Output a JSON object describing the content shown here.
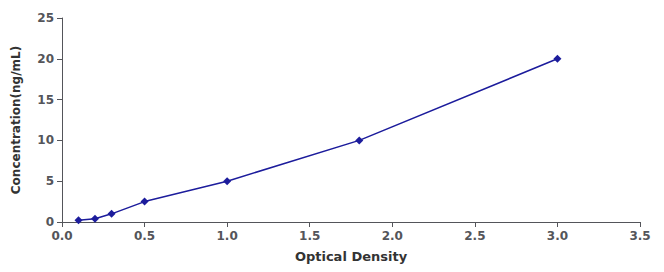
{
  "chart_data": {
    "type": "line",
    "x": [
      0.1,
      0.2,
      0.3,
      0.5,
      1.0,
      1.8,
      3.0
    ],
    "values": [
      0.2,
      0.4,
      1.0,
      2.5,
      5.0,
      10.0,
      20.0
    ],
    "color": "#1c1c9c",
    "marker": "diamond",
    "xlabel": "Optical Density",
    "ylabel": "Concentration(ng/mL)",
    "xlim": [
      0,
      3.5
    ],
    "ylim": [
      0,
      25
    ],
    "xticks": [
      {
        "value": 0,
        "label": "0.0"
      },
      0.5,
      {
        "value": 1,
        "label": "1.0"
      },
      1.5,
      {
        "value": 2,
        "label": "2.0"
      },
      2.5,
      {
        "value": 3,
        "label": "3.0"
      },
      3.5
    ],
    "yticks": [
      0,
      5,
      10,
      15,
      20,
      25
    ],
    "grid": false
  }
}
